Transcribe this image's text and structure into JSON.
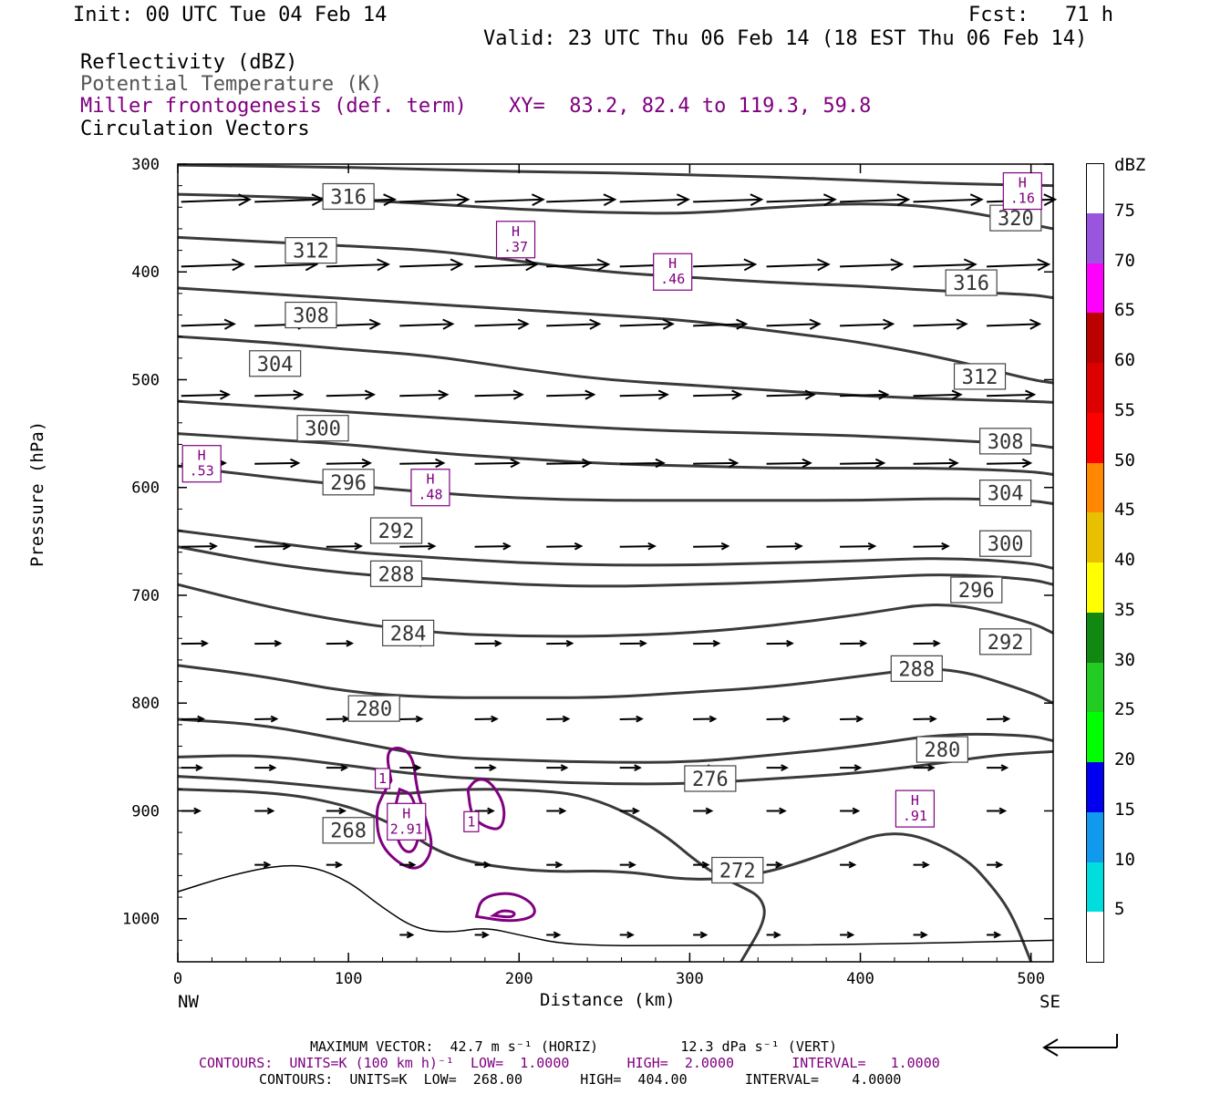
{
  "header": {
    "init": "Init: 00 UTC Tue 04 Feb 14",
    "fcst": "Fcst:   71 h",
    "valid": "Valid: 23 UTC Thu 06 Feb 14 (18 EST Thu 06 Feb 14)",
    "field1": "Reflectivity (dBZ)",
    "field2": "Potential Temperature (K)",
    "field3": "Miller frontogenesis (def. term)",
    "xy": "XY=  83.2, 82.4 to 119.3, 59.8",
    "field4": "Circulation Vectors"
  },
  "colors": {
    "theta": "#3a3a3a",
    "fronto": "#800080",
    "vector": "#000000"
  },
  "chart_data": {
    "type": "cross-section",
    "xlabel": "Distance (km)",
    "ylabel": "Pressure (hPa)",
    "xlim": [
      0,
      513
    ],
    "ylim": [
      1040,
      300
    ],
    "x_ticks": [
      "0",
      "100",
      "200",
      "300",
      "400",
      "500"
    ],
    "y_ticks": [
      "300",
      "400",
      "500",
      "600",
      "700",
      "800",
      "900",
      "1000"
    ],
    "left_end": "NW",
    "right_end": "SE",
    "theta_contours": [
      {
        "label": "268",
        "x": [
          0,
          60,
          100,
          130,
          160,
          210,
          260,
          300,
          340,
          380,
          420,
          460,
          480,
          490,
          500
        ],
        "p": [
          880,
          883,
          895,
          915,
          945,
          957,
          955,
          965,
          960,
          940,
          915,
          940,
          975,
          1000,
          1040
        ]
      },
      {
        "label": "272",
        "x": [
          0,
          50,
          100,
          130,
          160,
          200,
          240,
          280,
          310,
          330,
          342,
          345,
          330
        ],
        "p": [
          868,
          872,
          880,
          885,
          880,
          880,
          885,
          915,
          955,
          970,
          980,
          1000,
          1040
        ]
      },
      {
        "label": "276",
        "x": [
          0,
          50,
          100,
          150,
          200,
          250,
          300,
          350,
          400,
          450,
          480,
          513
        ],
        "p": [
          850,
          848,
          858,
          868,
          872,
          875,
          875,
          870,
          865,
          855,
          848,
          845
        ]
      },
      {
        "label": "280",
        "x": [
          0,
          50,
          100,
          150,
          200,
          250,
          300,
          350,
          400,
          450,
          500,
          513
        ],
        "p": [
          815,
          820,
          835,
          850,
          853,
          855,
          855,
          848,
          840,
          828,
          830,
          835
        ]
      },
      {
        "label": "284",
        "x": [
          0,
          50,
          100,
          150,
          200,
          250,
          300,
          350,
          400,
          450,
          500,
          513
        ],
        "p": [
          765,
          775,
          790,
          795,
          795,
          795,
          790,
          785,
          775,
          765,
          790,
          800
        ]
      },
      {
        "label": "288",
        "x": [
          0,
          50,
          100,
          150,
          200,
          250,
          300,
          350,
          400,
          450,
          500,
          513
        ],
        "p": [
          690,
          710,
          725,
          735,
          738,
          738,
          735,
          728,
          718,
          705,
          725,
          735
        ]
      },
      {
        "label": "292",
        "x": [
          0,
          50,
          100,
          150,
          200,
          250,
          300,
          350,
          400,
          450,
          500,
          513
        ],
        "p": [
          655,
          670,
          680,
          685,
          690,
          692,
          690,
          688,
          684,
          680,
          685,
          690
        ]
      },
      {
        "label": "296",
        "x": [
          0,
          50,
          100,
          150,
          200,
          250,
          300,
          350,
          400,
          450,
          500,
          513
        ],
        "p": [
          640,
          650,
          660,
          665,
          670,
          672,
          672,
          670,
          668,
          665,
          670,
          675
        ]
      },
      {
        "label": "300",
        "x": [
          0,
          50,
          100,
          150,
          200,
          250,
          300,
          350,
          400,
          450,
          500,
          513
        ],
        "p": [
          580,
          590,
          598,
          605,
          610,
          612,
          612,
          612,
          612,
          610,
          612,
          615
        ]
      },
      {
        "label": "304",
        "x": [
          0,
          50,
          100,
          150,
          200,
          250,
          300,
          350,
          400,
          450,
          500,
          513
        ],
        "p": [
          550,
          555,
          560,
          568,
          573,
          578,
          580,
          582,
          582,
          582,
          585,
          588
        ]
      },
      {
        "label": "308",
        "x": [
          0,
          50,
          100,
          150,
          200,
          250,
          300,
          350,
          400,
          450,
          500,
          513
        ],
        "p": [
          520,
          525,
          530,
          535,
          540,
          545,
          548,
          550,
          552,
          556,
          560,
          563
        ]
      },
      {
        "label": "312",
        "x": [
          0,
          50,
          100,
          150,
          200,
          250,
          300,
          350,
          400,
          450,
          500,
          513
        ],
        "p": [
          460,
          465,
          472,
          478,
          490,
          500,
          505,
          510,
          515,
          518,
          520,
          521
        ]
      },
      {
        "label": "316",
        "x": [
          0,
          50,
          100,
          150,
          200,
          250,
          300,
          350,
          400,
          450,
          500,
          513
        ],
        "p": [
          415,
          420,
          425,
          430,
          435,
          440,
          445,
          455,
          465,
          480,
          500,
          503
        ]
      },
      {
        "label": "320",
        "x": [
          0,
          50,
          100,
          150,
          200,
          250,
          300,
          350,
          400,
          450,
          500,
          513
        ],
        "p": [
          368,
          372,
          376,
          380,
          390,
          400,
          405,
          410,
          413,
          418,
          421,
          424
        ]
      }
    ],
    "theta_extra_lines": [
      {
        "x": [
          0,
          50,
          100,
          150,
          200,
          250,
          300,
          350,
          400,
          450,
          513
        ],
        "p": [
          328,
          330,
          333,
          337,
          342,
          345,
          346,
          340,
          336,
          340,
          360
        ]
      },
      {
        "x": [
          0,
          50,
          100,
          150,
          200,
          250,
          300,
          350,
          400,
          450,
          513
        ],
        "p": [
          301,
          302,
          303,
          305,
          307,
          308,
          310,
          312,
          315,
          318,
          320
        ]
      }
    ],
    "theta_labels": [
      {
        "text": "316",
        "x": 100,
        "p": 330
      },
      {
        "text": "312",
        "x": 78,
        "p": 380
      },
      {
        "text": "308",
        "x": 78,
        "p": 440
      },
      {
        "text": "304",
        "x": 57,
        "p": 485
      },
      {
        "text": "300",
        "x": 85,
        "p": 545
      },
      {
        "text": "296",
        "x": 100,
        "p": 595
      },
      {
        "text": "292",
        "x": 128,
        "p": 640
      },
      {
        "text": "288",
        "x": 128,
        "p": 680
      },
      {
        "text": "284",
        "x": 135,
        "p": 735
      },
      {
        "text": "280",
        "x": 115,
        "p": 805
      },
      {
        "text": "276",
        "x": 312,
        "p": 870
      },
      {
        "text": "272",
        "x": 328,
        "p": 955
      },
      {
        "text": "268",
        "x": 100,
        "p": 918
      },
      {
        "text": "320",
        "x": 491,
        "p": 350
      },
      {
        "text": "316",
        "x": 465,
        "p": 410
      },
      {
        "text": "312",
        "x": 470,
        "p": 497
      },
      {
        "text": "308",
        "x": 485,
        "p": 557
      },
      {
        "text": "304",
        "x": 485,
        "p": 605
      },
      {
        "text": "300",
        "x": 485,
        "p": 652
      },
      {
        "text": "296",
        "x": 468,
        "p": 695
      },
      {
        "text": "292",
        "x": 485,
        "p": 743
      },
      {
        "text": "288",
        "x": 433,
        "p": 768
      },
      {
        "text": "280",
        "x": 448,
        "p": 843
      }
    ],
    "fronto_maxima": [
      {
        "text": "H\n.16",
        "x": 495,
        "p": 325
      },
      {
        "text": "H\n.37",
        "x": 198,
        "p": 370
      },
      {
        "text": "H\n.46",
        "x": 290,
        "p": 400
      },
      {
        "text": "H\n.53",
        "x": 14,
        "p": 578
      },
      {
        "text": "H\n.48",
        "x": 148,
        "p": 600
      },
      {
        "text": "H\n2.91",
        "x": 134,
        "p": 910
      },
      {
        "text": "H\n.91",
        "x": 432,
        "p": 898
      },
      {
        "text": "1",
        "x": 120,
        "p": 870
      },
      {
        "text": "1",
        "x": 172,
        "p": 910
      }
    ],
    "vertical_vector_units": "dPa s-1",
    "horizontal_vector_units": "m s-1"
  },
  "colorbar": {
    "title": "dBZ",
    "labels": [
      "75",
      "70",
      "65",
      "60",
      "55",
      "50",
      "45",
      "40",
      "35",
      "30",
      "25",
      "20",
      "15",
      "10",
      "5"
    ],
    "colors": [
      "#ffffff",
      "#9955dd",
      "#ff00ff",
      "#bb0000",
      "#dd0000",
      "#ff0000",
      "#ff8800",
      "#e8c000",
      "#ffff00",
      "#118811",
      "#22cc22",
      "#00ff00",
      "#0000ee",
      "#1199ee",
      "#00dddd",
      "#ffffff"
    ]
  },
  "footer": {
    "max_vector": "MAXIMUM VECTOR:  42.7 m s⁻¹ (HORIZ)          12.3 dPa s⁻¹ (VERT)",
    "contours1": "CONTOURS:  UNITS=K (100 km h)⁻¹  LOW=  1.0000       HIGH=  2.0000       INTERVAL=   1.0000",
    "contours2": "CONTOURS:  UNITS=K  LOW=  268.00       HIGH=  404.00       INTERVAL=    4.0000"
  }
}
